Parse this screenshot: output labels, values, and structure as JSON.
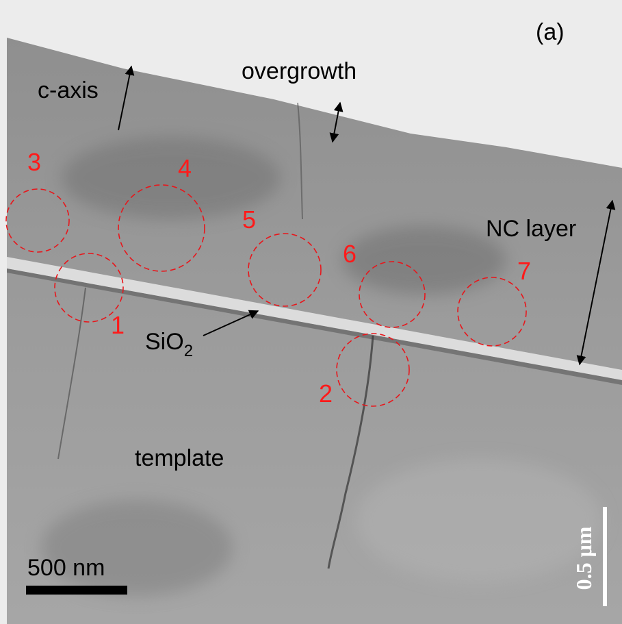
{
  "panel_label": "(a)",
  "annotations": {
    "c_axis": "c-axis",
    "overgrowth": "overgrowth",
    "nc_layer": "NC layer",
    "sio2": {
      "text": "SiO",
      "subscript": "2"
    },
    "template": "template"
  },
  "regions": [
    "1",
    "2",
    "3",
    "4",
    "5",
    "6",
    "7"
  ],
  "scale_bars": {
    "left": "500 nm",
    "right": "0.5 μm"
  }
}
